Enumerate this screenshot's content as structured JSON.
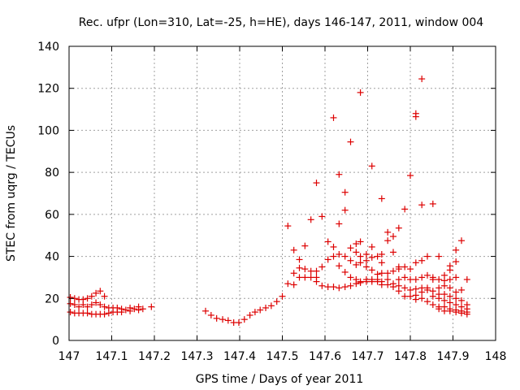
{
  "chart_data": {
    "type": "scatter",
    "title": "Rec. ufpr (Lon=310, Lat=-25, h=HE), days 146-147, 2011, window 004",
    "xlabel": "GPS time / Days of year 2011",
    "ylabel": "STEC from uqrg / TECUs",
    "xlim": [
      147,
      148
    ],
    "ylim": [
      0,
      140
    ],
    "x_ticks": [
      "147",
      "147.1",
      "147.2",
      "147.3",
      "147.4",
      "147.5",
      "147.6",
      "147.7",
      "147.8",
      "147.9",
      "148"
    ],
    "y_ticks": [
      "0",
      "20",
      "40",
      "60",
      "80",
      "100",
      "120",
      "140"
    ],
    "grid": true,
    "marker": "+",
    "color": "#dd0000",
    "points": [
      [
        147.003,
        20.5
      ],
      [
        147.003,
        17.5
      ],
      [
        147.003,
        13.5
      ],
      [
        147.013,
        20
      ],
      [
        147.013,
        17
      ],
      [
        147.013,
        13
      ],
      [
        147.023,
        19.5
      ],
      [
        147.023,
        16
      ],
      [
        147.023,
        13
      ],
      [
        147.033,
        19.5
      ],
      [
        147.033,
        17
      ],
      [
        147.033,
        13
      ],
      [
        147.043,
        20
      ],
      [
        147.043,
        16
      ],
      [
        147.043,
        13
      ],
      [
        147.053,
        21
      ],
      [
        147.053,
        17
      ],
      [
        147.053,
        12.5
      ],
      [
        147.063,
        22.5
      ],
      [
        147.063,
        18
      ],
      [
        147.063,
        12.5
      ],
      [
        147.073,
        23.5
      ],
      [
        147.073,
        17
      ],
      [
        147.073,
        12.5
      ],
      [
        147.083,
        21
      ],
      [
        147.083,
        16
      ],
      [
        147.083,
        12.5
      ],
      [
        147.093,
        15.5
      ],
      [
        147.093,
        13
      ],
      [
        147.103,
        15.5
      ],
      [
        147.103,
        13.5
      ],
      [
        147.113,
        15.5
      ],
      [
        147.113,
        13.5
      ],
      [
        147.123,
        15
      ],
      [
        147.123,
        13.5
      ],
      [
        147.133,
        14.5
      ],
      [
        147.143,
        15.5
      ],
      [
        147.143,
        14
      ],
      [
        147.153,
        15
      ],
      [
        147.163,
        16
      ],
      [
        147.163,
        14.5
      ],
      [
        147.173,
        15
      ],
      [
        147.193,
        16
      ],
      [
        147.32,
        14
      ],
      [
        147.333,
        12
      ],
      [
        147.346,
        10.5
      ],
      [
        147.36,
        10
      ],
      [
        147.373,
        9.5
      ],
      [
        147.386,
        8.5
      ],
      [
        147.398,
        8.5
      ],
      [
        147.411,
        10
      ],
      [
        147.424,
        12
      ],
      [
        147.436,
        13.5
      ],
      [
        147.448,
        14.5
      ],
      [
        147.461,
        15.5
      ],
      [
        147.474,
        16.5
      ],
      [
        147.487,
        18.5
      ],
      [
        147.5,
        21
      ],
      [
        147.513,
        54.5
      ],
      [
        147.513,
        27
      ],
      [
        147.527,
        43
      ],
      [
        147.527,
        32
      ],
      [
        147.527,
        26.5
      ],
      [
        147.54,
        38.5
      ],
      [
        147.54,
        34.5
      ],
      [
        147.54,
        30
      ],
      [
        147.553,
        45
      ],
      [
        147.553,
        34
      ],
      [
        147.553,
        30
      ],
      [
        147.567,
        57.5
      ],
      [
        147.567,
        33
      ],
      [
        147.567,
        30
      ],
      [
        147.58,
        75
      ],
      [
        147.58,
        33
      ],
      [
        147.58,
        30
      ],
      [
        147.58,
        28
      ],
      [
        147.593,
        59
      ],
      [
        147.593,
        35
      ],
      [
        147.593,
        26
      ],
      [
        147.607,
        47
      ],
      [
        147.607,
        38.5
      ],
      [
        147.607,
        25.5
      ],
      [
        147.62,
        106
      ],
      [
        147.62,
        44.5
      ],
      [
        147.62,
        40
      ],
      [
        147.62,
        25.5
      ],
      [
        147.633,
        79
      ],
      [
        147.633,
        55.5
      ],
      [
        147.633,
        41
      ],
      [
        147.633,
        35.5
      ],
      [
        147.633,
        25
      ],
      [
        147.647,
        70.5
      ],
      [
        147.647,
        62
      ],
      [
        147.647,
        40
      ],
      [
        147.647,
        32.5
      ],
      [
        147.647,
        25.5
      ],
      [
        147.66,
        94.5
      ],
      [
        147.66,
        44
      ],
      [
        147.66,
        38
      ],
      [
        147.66,
        30
      ],
      [
        147.66,
        26
      ],
      [
        147.673,
        46
      ],
      [
        147.673,
        42
      ],
      [
        147.673,
        36
      ],
      [
        147.673,
        29
      ],
      [
        147.673,
        27
      ],
      [
        147.683,
        118
      ],
      [
        147.683,
        47
      ],
      [
        147.683,
        40
      ],
      [
        147.683,
        37
      ],
      [
        147.683,
        28
      ],
      [
        147.683,
        27.5
      ],
      [
        147.697,
        41
      ],
      [
        147.697,
        38
      ],
      [
        147.697,
        35
      ],
      [
        147.697,
        29
      ],
      [
        147.697,
        28
      ],
      [
        147.71,
        83
      ],
      [
        147.71,
        44.5
      ],
      [
        147.71,
        39.5
      ],
      [
        147.71,
        33.5
      ],
      [
        147.71,
        29
      ],
      [
        147.71,
        28
      ],
      [
        147.723,
        40
      ],
      [
        147.723,
        31.5
      ],
      [
        147.723,
        29
      ],
      [
        147.723,
        28
      ],
      [
        147.733,
        67.5
      ],
      [
        147.733,
        41
      ],
      [
        147.733,
        37
      ],
      [
        147.733,
        32
      ],
      [
        147.733,
        28
      ],
      [
        147.733,
        26.5
      ],
      [
        147.747,
        51.5
      ],
      [
        147.747,
        47.5
      ],
      [
        147.747,
        32
      ],
      [
        147.747,
        29
      ],
      [
        147.747,
        26.5
      ],
      [
        147.76,
        49.5
      ],
      [
        147.76,
        42
      ],
      [
        147.76,
        33
      ],
      [
        147.76,
        27
      ],
      [
        147.76,
        25.5
      ],
      [
        147.773,
        53.5
      ],
      [
        147.773,
        35
      ],
      [
        147.773,
        34
      ],
      [
        147.773,
        29
      ],
      [
        147.773,
        26
      ],
      [
        147.773,
        23.5
      ],
      [
        147.787,
        62.5
      ],
      [
        147.787,
        35
      ],
      [
        147.787,
        30
      ],
      [
        147.787,
        25
      ],
      [
        147.787,
        21
      ],
      [
        147.8,
        78.5
      ],
      [
        147.8,
        34
      ],
      [
        147.8,
        29
      ],
      [
        147.8,
        24
      ],
      [
        147.8,
        21
      ],
      [
        147.813,
        108
      ],
      [
        147.813,
        106.5
      ],
      [
        147.813,
        37
      ],
      [
        147.813,
        29
      ],
      [
        147.813,
        24.5
      ],
      [
        147.813,
        21.5
      ],
      [
        147.813,
        19.5
      ],
      [
        147.827,
        124.5
      ],
      [
        147.827,
        64.5
      ],
      [
        147.827,
        38
      ],
      [
        147.827,
        30
      ],
      [
        147.827,
        25
      ],
      [
        147.827,
        23
      ],
      [
        147.827,
        20
      ],
      [
        147.84,
        40
      ],
      [
        147.84,
        31
      ],
      [
        147.84,
        25
      ],
      [
        147.84,
        24
      ],
      [
        147.84,
        18.5
      ],
      [
        147.853,
        65
      ],
      [
        147.853,
        30
      ],
      [
        147.853,
        29
      ],
      [
        147.853,
        23.5
      ],
      [
        147.853,
        21
      ],
      [
        147.853,
        17
      ],
      [
        147.867,
        40
      ],
      [
        147.867,
        29
      ],
      [
        147.867,
        25
      ],
      [
        147.867,
        22
      ],
      [
        147.867,
        20
      ],
      [
        147.867,
        16
      ],
      [
        147.867,
        15
      ],
      [
        147.88,
        31
      ],
      [
        147.88,
        28.5
      ],
      [
        147.88,
        26
      ],
      [
        147.88,
        22
      ],
      [
        147.88,
        19
      ],
      [
        147.88,
        16
      ],
      [
        147.88,
        14
      ],
      [
        147.893,
        35.5
      ],
      [
        147.893,
        33.5
      ],
      [
        147.893,
        29
      ],
      [
        147.893,
        25
      ],
      [
        147.893,
        21
      ],
      [
        147.893,
        18
      ],
      [
        147.893,
        15
      ],
      [
        147.893,
        14
      ],
      [
        147.907,
        43
      ],
      [
        147.907,
        37.5
      ],
      [
        147.907,
        30
      ],
      [
        147.907,
        23
      ],
      [
        147.907,
        20
      ],
      [
        147.907,
        17
      ],
      [
        147.907,
        14.5
      ],
      [
        147.907,
        13.5
      ],
      [
        147.92,
        47.5
      ],
      [
        147.92,
        24
      ],
      [
        147.92,
        19
      ],
      [
        147.92,
        16
      ],
      [
        147.92,
        14
      ],
      [
        147.92,
        13
      ],
      [
        147.933,
        29
      ],
      [
        147.933,
        17
      ],
      [
        147.933,
        15
      ],
      [
        147.933,
        13.5
      ],
      [
        147.933,
        12.5
      ]
    ]
  }
}
